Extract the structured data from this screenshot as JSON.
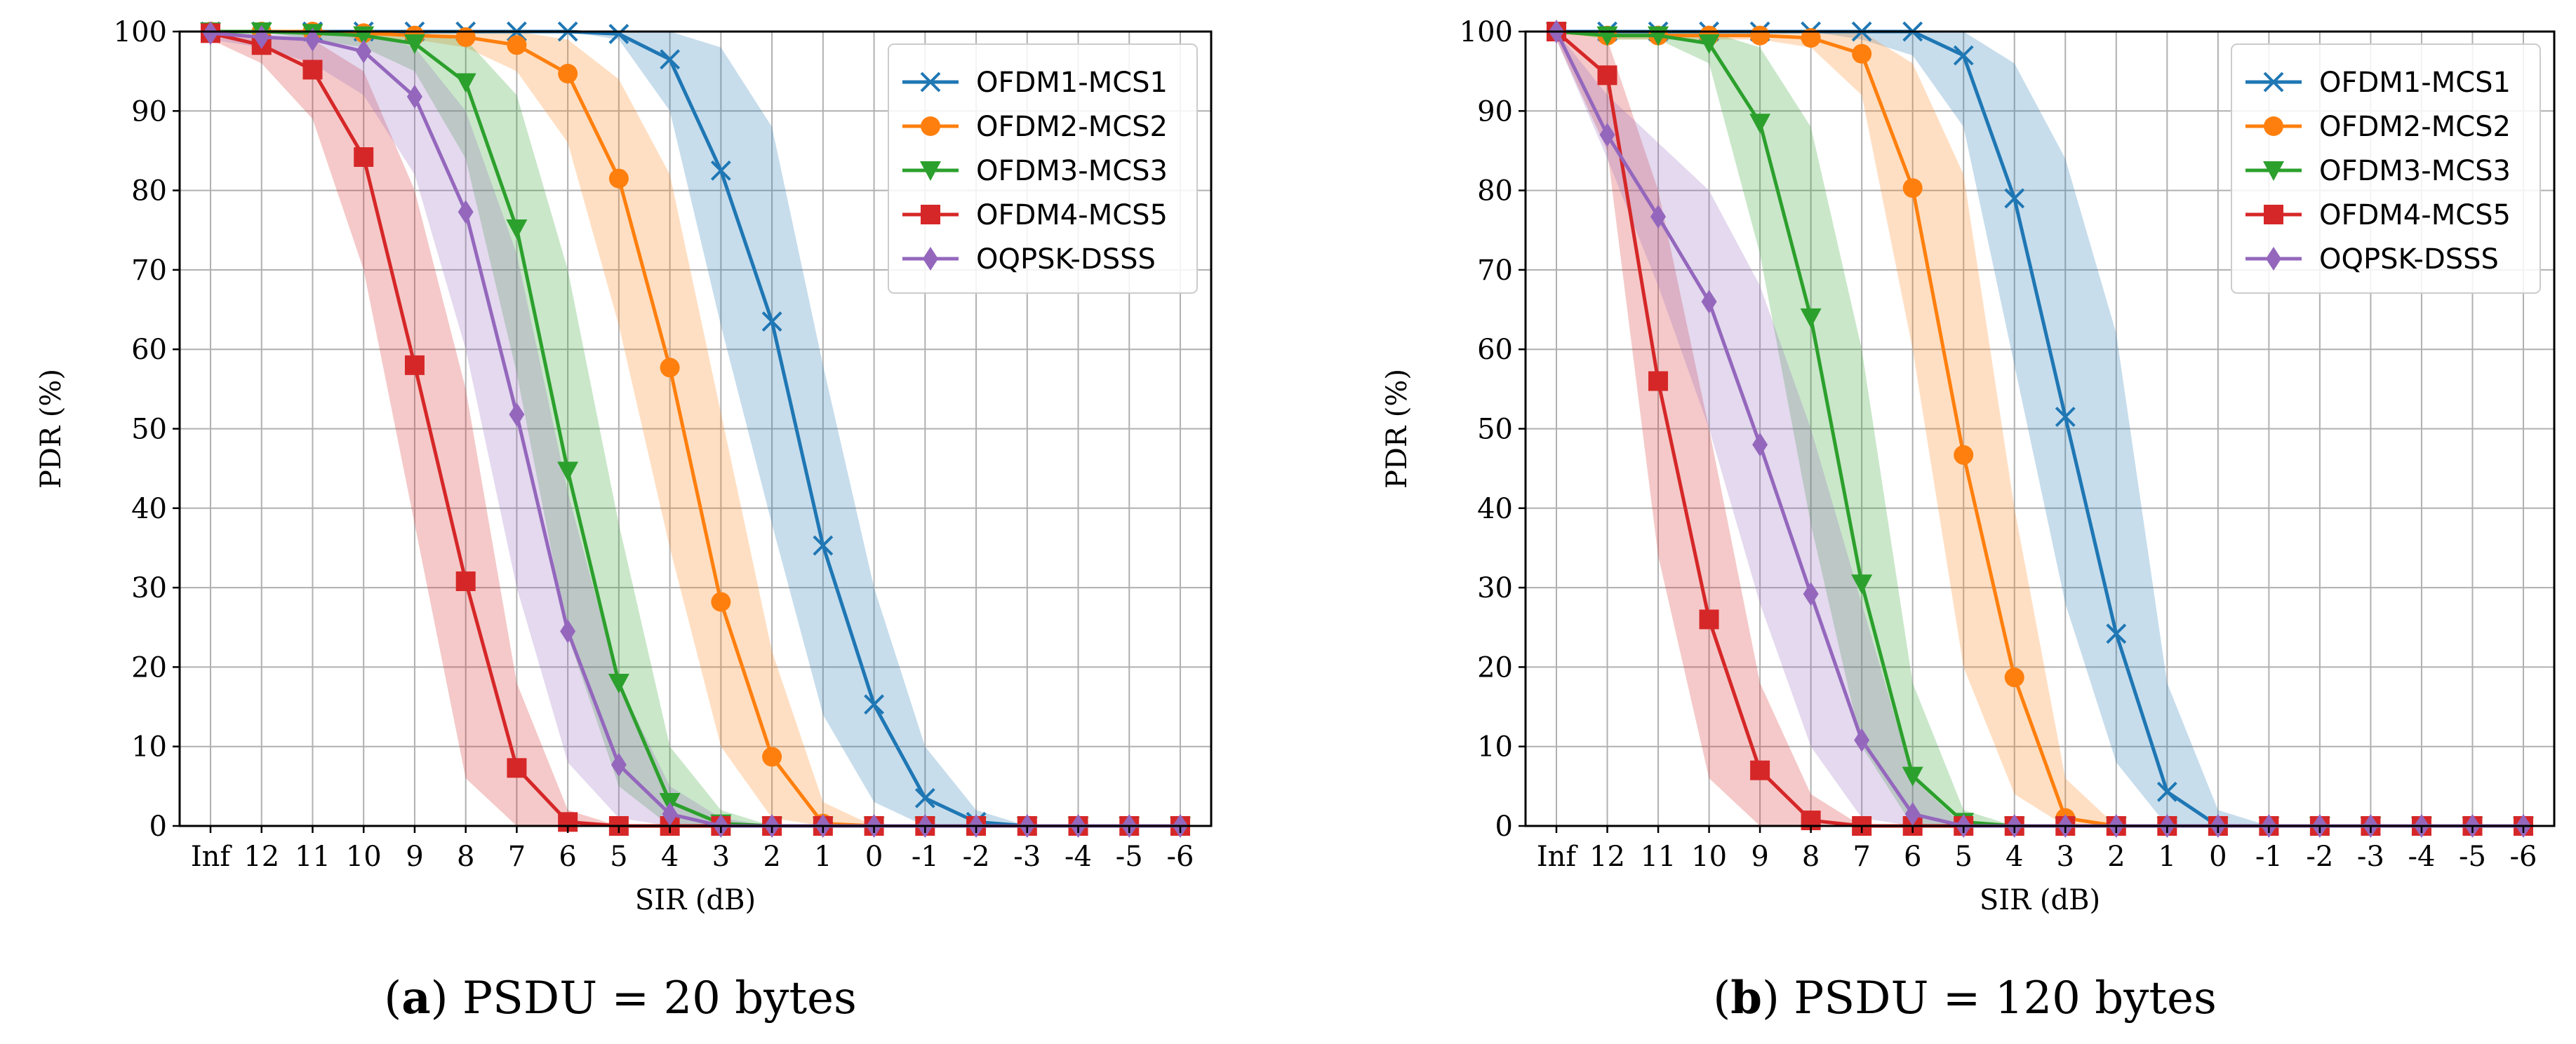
{
  "chart_data": [
    {
      "type": "line",
      "caption_letter": "a",
      "caption_text": "PSDU = 20 bytes",
      "title": "",
      "xlabel": "SIR (dB)",
      "ylabel": "PDR (%)",
      "categories": [
        "Inf",
        "12",
        "11",
        "10",
        "9",
        "8",
        "7",
        "6",
        "5",
        "4",
        "3",
        "2",
        "1",
        "0",
        "-1",
        "-2",
        "-3",
        "-4",
        "-5",
        "-6"
      ],
      "yticks": [
        "0",
        "10",
        "20",
        "30",
        "40",
        "50",
        "60",
        "70",
        "80",
        "90",
        "100"
      ],
      "ylim": [
        0,
        100
      ],
      "grid": true,
      "legend_position": "top-right",
      "series": [
        {
          "name": "OFDM1-MCS1",
          "color": "#1f77b4",
          "marker": "x",
          "values": [
            100,
            100,
            100,
            100,
            100,
            100,
            100,
            100,
            99.7,
            96.5,
            82.5,
            63.5,
            35.3,
            15.3,
            3.5,
            0.5,
            0,
            0,
            0,
            0
          ],
          "lower": [
            100,
            100,
            100,
            100,
            100,
            100,
            100,
            100,
            99,
            90,
            63,
            38,
            14,
            3,
            0,
            0,
            0,
            0,
            0,
            0
          ],
          "upper": [
            100,
            100,
            100,
            100,
            100,
            100,
            100,
            100,
            100,
            100,
            98,
            88,
            58,
            30,
            10,
            2,
            0,
            0,
            0,
            0
          ]
        },
        {
          "name": "OFDM2-MCS2",
          "color": "#ff7f0e",
          "marker": "o",
          "values": [
            100,
            100,
            100,
            99.8,
            99.5,
            99.3,
            98.3,
            94.7,
            81.5,
            57.7,
            28.2,
            8.7,
            0.3,
            0,
            0,
            0,
            0,
            0,
            0,
            0
          ],
          "lower": [
            100,
            100,
            100,
            99,
            99,
            98,
            95,
            86,
            63,
            35,
            10,
            1,
            0,
            0,
            0,
            0,
            0,
            0,
            0,
            0
          ],
          "upper": [
            100,
            100,
            100,
            100,
            100,
            100,
            100,
            99,
            94,
            82,
            52,
            22,
            3,
            0,
            0,
            0,
            0,
            0,
            0,
            0
          ]
        },
        {
          "name": "OFDM3-MCS3",
          "color": "#2ca02c",
          "marker": "v",
          "values": [
            100,
            100,
            99.8,
            99.5,
            98.5,
            93.6,
            75.2,
            44.7,
            18,
            3,
            0.3,
            0,
            0,
            0,
            0,
            0,
            0,
            0,
            0,
            0
          ],
          "lower": [
            100,
            100,
            99,
            98,
            95,
            84,
            57,
            24,
            5,
            0,
            0,
            0,
            0,
            0,
            0,
            0,
            0,
            0,
            0,
            0
          ],
          "upper": [
            100,
            100,
            100,
            100,
            100,
            99,
            92,
            70,
            38,
            10,
            2,
            0,
            0,
            0,
            0,
            0,
            0,
            0,
            0,
            0
          ]
        },
        {
          "name": "OFDM4-MCS5",
          "color": "#d62728",
          "marker": "s",
          "values": [
            99.8,
            98.3,
            95.2,
            84.2,
            58,
            30.8,
            7.3,
            0.5,
            0,
            0,
            0,
            0,
            0,
            0,
            0,
            0,
            0,
            0,
            0,
            0
          ],
          "lower": [
            99,
            96,
            89,
            70,
            38,
            6,
            0,
            0,
            0,
            0,
            0,
            0,
            0,
            0,
            0,
            0,
            0,
            0,
            0,
            0
          ],
          "upper": [
            100,
            99.5,
            99,
            95,
            80,
            55,
            18,
            2,
            0,
            0,
            0,
            0,
            0,
            0,
            0,
            0,
            0,
            0,
            0,
            0
          ]
        },
        {
          "name": "OQPSK-DSSS",
          "color": "#9467bd",
          "marker": "d",
          "values": [
            99.8,
            99.3,
            99,
            97.5,
            91.8,
            77.3,
            51.8,
            24.5,
            7.7,
            1.5,
            0,
            0,
            0,
            0,
            0,
            0,
            0,
            0,
            0,
            0
          ],
          "lower": [
            99,
            98,
            96,
            92,
            82,
            60,
            30,
            8,
            1,
            0,
            0,
            0,
            0,
            0,
            0,
            0,
            0,
            0,
            0,
            0
          ],
          "upper": [
            100,
            100,
            100,
            100,
            98,
            90,
            72,
            42,
            18,
            5,
            1,
            0,
            0,
            0,
            0,
            0,
            0,
            0,
            0,
            0
          ]
        }
      ]
    },
    {
      "type": "line",
      "caption_letter": "b",
      "caption_text": "PSDU = 120 bytes",
      "title": "",
      "xlabel": "SIR (dB)",
      "ylabel": "PDR (%)",
      "categories": [
        "Inf",
        "12",
        "11",
        "10",
        "9",
        "8",
        "7",
        "6",
        "5",
        "4",
        "3",
        "2",
        "1",
        "0",
        "-1",
        "-2",
        "-3",
        "-4",
        "-5",
        "-6"
      ],
      "yticks": [
        "0",
        "10",
        "20",
        "30",
        "40",
        "50",
        "60",
        "70",
        "80",
        "90",
        "100"
      ],
      "ylim": [
        0,
        100
      ],
      "grid": true,
      "legend_position": "top-right",
      "series": [
        {
          "name": "OFDM1-MCS1",
          "color": "#1f77b4",
          "marker": "x",
          "values": [
            100,
            100,
            100,
            100,
            100,
            100,
            100,
            100,
            97,
            79,
            51.5,
            24.2,
            4.3,
            0,
            0,
            0,
            0,
            0,
            0,
            0
          ],
          "lower": [
            100,
            100,
            100,
            100,
            100,
            100,
            99,
            97,
            88,
            58,
            28,
            8,
            0,
            0,
            0,
            0,
            0,
            0,
            0,
            0
          ],
          "upper": [
            100,
            100,
            100,
            100,
            100,
            100,
            100,
            100,
            100,
            96,
            84,
            62,
            18,
            2,
            0,
            0,
            0,
            0,
            0,
            0
          ]
        },
        {
          "name": "OFDM2-MCS2",
          "color": "#ff7f0e",
          "marker": "o",
          "values": [
            100,
            99.5,
            99.5,
            99.5,
            99.5,
            99.2,
            97.2,
            80.3,
            46.7,
            18.7,
            1,
            0,
            0,
            0,
            0,
            0,
            0,
            0,
            0,
            0
          ],
          "lower": [
            100,
            99,
            99,
            99,
            99,
            98,
            92,
            60,
            20,
            4,
            0,
            0,
            0,
            0,
            0,
            0,
            0,
            0,
            0,
            0
          ],
          "upper": [
            100,
            100,
            100,
            100,
            100,
            100,
            100,
            96,
            82,
            40,
            6,
            0,
            0,
            0,
            0,
            0,
            0,
            0,
            0,
            0
          ]
        },
        {
          "name": "OFDM3-MCS3",
          "color": "#2ca02c",
          "marker": "v",
          "values": [
            100,
            99.5,
            99.5,
            98.5,
            88.5,
            64,
            30.5,
            6.3,
            0.5,
            0,
            0,
            0,
            0,
            0,
            0,
            0,
            0,
            0,
            0,
            0
          ],
          "lower": [
            100,
            99,
            99,
            96,
            72,
            38,
            10,
            0,
            0,
            0,
            0,
            0,
            0,
            0,
            0,
            0,
            0,
            0,
            0,
            0
          ],
          "upper": [
            100,
            100,
            100,
            100,
            98,
            88,
            60,
            18,
            2,
            0,
            0,
            0,
            0,
            0,
            0,
            0,
            0,
            0,
            0,
            0
          ]
        },
        {
          "name": "OFDM4-MCS5",
          "color": "#d62728",
          "marker": "s",
          "values": [
            100,
            94.5,
            56,
            26,
            7,
            0.7,
            0,
            0,
            0,
            0,
            0,
            0,
            0,
            0,
            0,
            0,
            0,
            0,
            0,
            0
          ],
          "lower": [
            99,
            85,
            34,
            6,
            0,
            0,
            0,
            0,
            0,
            0,
            0,
            0,
            0,
            0,
            0,
            0,
            0,
            0,
            0,
            0
          ],
          "upper": [
            100,
            99,
            80,
            50,
            18,
            4,
            0,
            0,
            0,
            0,
            0,
            0,
            0,
            0,
            0,
            0,
            0,
            0,
            0,
            0
          ]
        },
        {
          "name": "OQPSK-DSSS",
          "color": "#9467bd",
          "marker": "d",
          "values": [
            100,
            87,
            76.7,
            66,
            48,
            29.2,
            10.8,
            1.5,
            0,
            0,
            0,
            0,
            0,
            0,
            0,
            0,
            0,
            0,
            0,
            0
          ],
          "lower": [
            99,
            84,
            68,
            50,
            28,
            10,
            1,
            0,
            0,
            0,
            0,
            0,
            0,
            0,
            0,
            0,
            0,
            0,
            0,
            0
          ],
          "upper": [
            100,
            92,
            86,
            80,
            68,
            50,
            28,
            6,
            0,
            0,
            0,
            0,
            0,
            0,
            0,
            0,
            0,
            0,
            0,
            0
          ]
        }
      ]
    }
  ]
}
